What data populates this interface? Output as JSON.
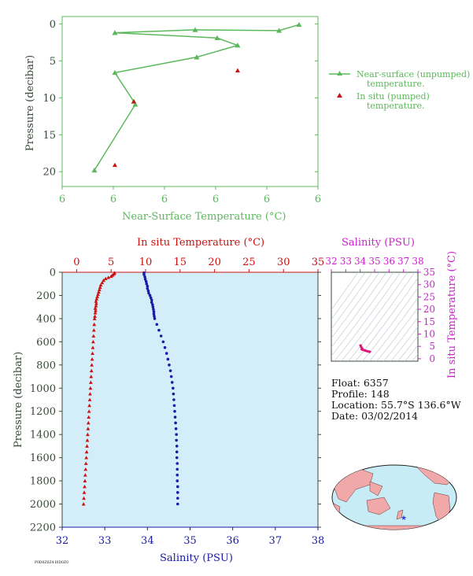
{
  "chart_data": [
    {
      "type": "line",
      "xlabel": "Near-Surface Temperature (°C)",
      "ylabel": "Pressure (decibar)",
      "x_tick_labels": [
        "6",
        "6",
        "6",
        "6",
        "6",
        "6"
      ],
      "y_tick_labels": [
        "0",
        "5",
        "10",
        "15",
        "20"
      ],
      "ylim": [
        22,
        -1
      ],
      "xlim": [
        0,
        5
      ],
      "series": [
        {
          "name": "Near-surface (unpumped) temperature.",
          "name_line1": "Near-surface (unpumped)",
          "name_line2": "temperature.",
          "color": "#5cb85c",
          "marker": "triangle",
          "points": [
            [
              4.63,
              0.1
            ],
            [
              4.24,
              0.9
            ],
            [
              2.6,
              0.8
            ],
            [
              1.03,
              1.2
            ],
            [
              3.03,
              1.9
            ],
            [
              3.43,
              2.9
            ],
            [
              2.63,
              4.5
            ],
            [
              1.03,
              6.6
            ],
            [
              1.4,
              10.5
            ],
            [
              1.43,
              10.9
            ],
            [
              0.63,
              19.8
            ]
          ]
        },
        {
          "name": "In situ (pumped) temperature.",
          "name_line1": "In situ (pumped)",
          "name_line2": "temperature.",
          "color": "#cc1111",
          "marker": "triangle",
          "points": [
            [
              3.43,
              6.3
            ],
            [
              1.4,
              10.5
            ],
            [
              1.03,
              19.1
            ]
          ]
        }
      ],
      "legend": "right"
    },
    {
      "type": "scatter",
      "top_xlabel": "In situ Temperature (°C)",
      "top_x_ticks": [
        "0",
        "5",
        "10",
        "15",
        "20",
        "25",
        "30",
        "35"
      ],
      "top_xlim": [
        -2.1,
        35
      ],
      "bottom_xlabel": "Salinity (PSU)",
      "bottom_x_ticks": [
        "32",
        "33",
        "34",
        "35",
        "36",
        "37",
        "38"
      ],
      "bottom_xlim": [
        32,
        38
      ],
      "ylabel": "Pressure (decibar)",
      "y_ticks": [
        "0",
        "200",
        "400",
        "600",
        "800",
        "1000",
        "1200",
        "1400",
        "1600",
        "1800",
        "2000",
        "2200"
      ],
      "ylim": [
        2200,
        0
      ],
      "series": [
        {
          "name": "Temperature",
          "color": "#cc1111",
          "marker": "triangle",
          "points": [
            [
              5.5,
              5
            ],
            [
              5.4,
              15
            ],
            [
              5.2,
              25
            ],
            [
              5.0,
              35
            ],
            [
              4.6,
              45
            ],
            [
              4.2,
              55
            ],
            [
              3.9,
              70
            ],
            [
              3.7,
              90
            ],
            [
              3.5,
              110
            ],
            [
              3.4,
              130
            ],
            [
              3.3,
              150
            ],
            [
              3.2,
              170
            ],
            [
              3.1,
              190
            ],
            [
              3.0,
              210
            ],
            [
              2.9,
              230
            ],
            [
              2.8,
              250
            ],
            [
              2.85,
              270
            ],
            [
              2.8,
              290
            ],
            [
              2.7,
              310
            ],
            [
              2.75,
              330
            ],
            [
              2.7,
              350
            ],
            [
              2.65,
              380
            ],
            [
              2.6,
              400
            ],
            [
              2.55,
              450
            ],
            [
              2.5,
              500
            ],
            [
              2.45,
              550
            ],
            [
              2.4,
              600
            ],
            [
              2.35,
              650
            ],
            [
              2.3,
              700
            ],
            [
              2.25,
              750
            ],
            [
              2.2,
              800
            ],
            [
              2.15,
              850
            ],
            [
              2.1,
              900
            ],
            [
              2.05,
              950
            ],
            [
              2.0,
              1000
            ],
            [
              1.95,
              1050
            ],
            [
              1.9,
              1100
            ],
            [
              1.85,
              1150
            ],
            [
              1.8,
              1200
            ],
            [
              1.75,
              1250
            ],
            [
              1.7,
              1300
            ],
            [
              1.65,
              1350
            ],
            [
              1.6,
              1400
            ],
            [
              1.55,
              1450
            ],
            [
              1.5,
              1500
            ],
            [
              1.45,
              1550
            ],
            [
              1.4,
              1600
            ],
            [
              1.35,
              1650
            ],
            [
              1.3,
              1700
            ],
            [
              1.25,
              1750
            ],
            [
              1.2,
              1800
            ],
            [
              1.15,
              1850
            ],
            [
              1.1,
              1900
            ],
            [
              1.05,
              1950
            ],
            [
              1.0,
              2000
            ]
          ]
        },
        {
          "name": "Salinity",
          "color": "#1a1aa8",
          "marker": "circle",
          "points": [
            [
              33.92,
              5
            ],
            [
              33.92,
              20
            ],
            [
              33.94,
              40
            ],
            [
              33.95,
              60
            ],
            [
              33.97,
              80
            ],
            [
              33.98,
              100
            ],
            [
              34.0,
              120
            ],
            [
              34.0,
              140
            ],
            [
              34.02,
              160
            ],
            [
              34.03,
              180
            ],
            [
              34.06,
              200
            ],
            [
              34.08,
              220
            ],
            [
              34.1,
              240
            ],
            [
              34.1,
              260
            ],
            [
              34.12,
              280
            ],
            [
              34.13,
              300
            ],
            [
              34.14,
              320
            ],
            [
              34.15,
              340
            ],
            [
              34.15,
              360
            ],
            [
              34.16,
              380
            ],
            [
              34.17,
              400
            ],
            [
              34.22,
              450
            ],
            [
              34.27,
              500
            ],
            [
              34.32,
              550
            ],
            [
              34.37,
              600
            ],
            [
              34.41,
              650
            ],
            [
              34.45,
              700
            ],
            [
              34.48,
              750
            ],
            [
              34.51,
              800
            ],
            [
              34.54,
              850
            ],
            [
              34.56,
              900
            ],
            [
              34.58,
              950
            ],
            [
              34.6,
              1000
            ],
            [
              34.61,
              1050
            ],
            [
              34.62,
              1100
            ],
            [
              34.63,
              1150
            ],
            [
              34.64,
              1200
            ],
            [
              34.65,
              1250
            ],
            [
              34.66,
              1300
            ],
            [
              34.67,
              1350
            ],
            [
              34.68,
              1400
            ],
            [
              34.68,
              1450
            ],
            [
              34.69,
              1500
            ],
            [
              34.69,
              1550
            ],
            [
              34.69,
              1600
            ],
            [
              34.7,
              1650
            ],
            [
              34.7,
              1700
            ],
            [
              34.7,
              1750
            ],
            [
              34.7,
              1800
            ],
            [
              34.71,
              1850
            ],
            [
              34.71,
              1900
            ],
            [
              34.71,
              1950
            ],
            [
              34.71,
              2000
            ]
          ]
        }
      ],
      "background": "#d3eef8"
    },
    {
      "type": "scatter",
      "top_xlabel": "Salinity (PSU)",
      "x_ticks": [
        "32",
        "33",
        "34",
        "35",
        "36",
        "37",
        "38"
      ],
      "xlim": [
        32,
        38
      ],
      "ylabel": "In situ Temperature (°C)",
      "y_ticks": [
        "0",
        "5",
        "10",
        "15",
        "20",
        "25",
        "30",
        "35"
      ],
      "ylim": [
        -1,
        35
      ],
      "series": [
        {
          "name": "T-S",
          "color": "#e0157a",
          "points": [
            [
              34.0,
              5.8
            ],
            [
              34.02,
              5.4
            ],
            [
              34.05,
              4.9
            ],
            [
              34.1,
              4.5
            ],
            [
              34.15,
              4.1
            ],
            [
              34.1,
              3.8
            ],
            [
              34.2,
              3.6
            ],
            [
              34.3,
              3.4
            ],
            [
              34.4,
              3.2
            ],
            [
              34.5,
              3.0
            ],
            [
              34.6,
              2.9
            ],
            [
              34.68,
              2.8
            ],
            [
              34.7,
              2.6
            ],
            [
              34.72,
              2.5
            ]
          ]
        }
      ]
    }
  ],
  "float_info": {
    "float": "Float:  6357",
    "profile": "Profile:  148",
    "location": "Location:  55.7°S  136.6°W",
    "date": "Date:  03/02/2014"
  },
  "map": {
    "icon": "world-map-icon",
    "marker": "float-location-star-icon",
    "land_color": "#f0a8a8",
    "ocean_color": "#c8ecf6"
  },
  "footer_code": "P0D0Z0Z4 I0D0Z0"
}
